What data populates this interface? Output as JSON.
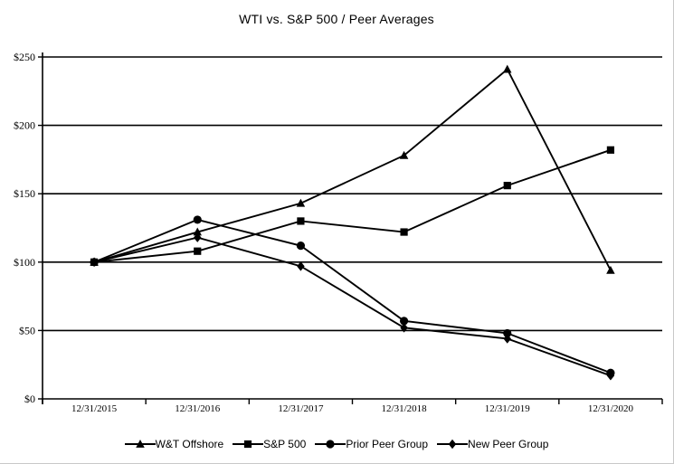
{
  "title": "WTI vs. S&P 500 / Peer Averages",
  "chart_data": {
    "type": "line",
    "x": [
      "12/31/2015",
      "12/31/2016",
      "12/31/2017",
      "12/31/2018",
      "12/31/2019",
      "12/31/2020"
    ],
    "series": [
      {
        "name": "W&T Offshore",
        "marker": "triangle",
        "values": [
          100,
          122,
          143,
          178,
          241,
          94
        ]
      },
      {
        "name": "S&P 500",
        "marker": "square",
        "values": [
          100,
          108,
          130,
          122,
          156,
          182
        ]
      },
      {
        "name": "Prior Peer Group",
        "marker": "circle",
        "values": [
          100,
          131,
          112,
          57,
          48,
          19
        ]
      },
      {
        "name": "New Peer Group",
        "marker": "diamond",
        "values": [
          100,
          118,
          97,
          52,
          44,
          17
        ]
      }
    ],
    "ylim": [
      0,
      250
    ],
    "ytick_step": 50,
    "ytick_labels": [
      "$0",
      "$50",
      "$100",
      "$150",
      "$200",
      "$250"
    ],
    "grid": true,
    "legend_position": "bottom",
    "line_color": "#000000",
    "background_color": "#ffffff"
  }
}
